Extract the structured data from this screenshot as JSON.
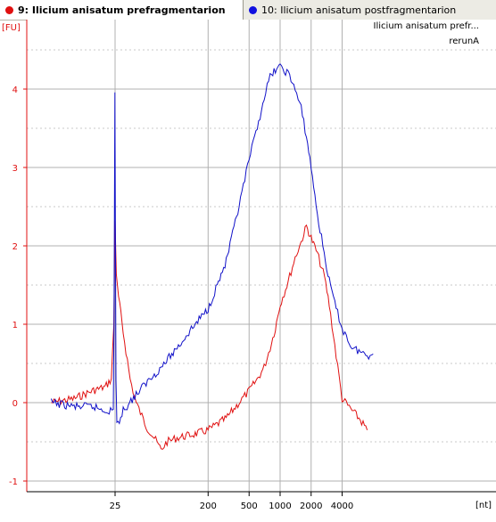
{
  "tabs": [
    {
      "label": "9: Ilicium anisatum prefragmentarion",
      "color": "#e01010",
      "active": true
    },
    {
      "label": "10: Ilicium anisatum postfragmentarion",
      "color": "#1010e0",
      "active": false
    }
  ],
  "chart_data": {
    "type": "line",
    "x_scale": "log",
    "xlabel": "[nt]",
    "ylabel": "[FU]",
    "x_ticks": [
      25,
      200,
      500,
      1000,
      2000,
      4000
    ],
    "y_ticks": [
      -1,
      0,
      1,
      2,
      3,
      4
    ],
    "ylim": [
      -1.1,
      4.75
    ],
    "legend": {
      "position": "top-right",
      "entries": [
        "Ilicium anisatum prefr...",
        "rerunA"
      ]
    },
    "series": [
      {
        "name": "Ilicium anisatum prefragmentarion",
        "color": "#e01010",
        "points": [
          [
            6,
            0.0
          ],
          [
            10,
            0.05
          ],
          [
            15,
            0.15
          ],
          [
            20,
            0.2
          ],
          [
            23,
            0.3
          ],
          [
            24.3,
            1.0
          ],
          [
            25,
            2.35
          ],
          [
            25.7,
            1.6
          ],
          [
            27,
            1.35
          ],
          [
            30,
            0.9
          ],
          [
            35,
            0.3
          ],
          [
            40,
            0.0
          ],
          [
            50,
            -0.3
          ],
          [
            60,
            -0.45
          ],
          [
            70,
            -0.6
          ],
          [
            80,
            -0.5
          ],
          [
            100,
            -0.45
          ],
          [
            150,
            -0.4
          ],
          [
            200,
            -0.35
          ],
          [
            300,
            -0.2
          ],
          [
            400,
            0.0
          ],
          [
            500,
            0.15
          ],
          [
            600,
            0.3
          ],
          [
            700,
            0.45
          ],
          [
            800,
            0.7
          ],
          [
            900,
            0.95
          ],
          [
            1000,
            1.25
          ],
          [
            1200,
            1.55
          ],
          [
            1400,
            1.85
          ],
          [
            1600,
            2.05
          ],
          [
            1800,
            2.25
          ],
          [
            2000,
            2.1
          ],
          [
            2300,
            1.9
          ],
          [
            2700,
            1.6
          ],
          [
            3000,
            1.25
          ],
          [
            3500,
            0.6
          ],
          [
            4000,
            0.05
          ],
          [
            5000,
            -0.1
          ],
          [
            6000,
            -0.22
          ],
          [
            7000,
            -0.35
          ]
        ]
      },
      {
        "name": "Ilicium anisatum postfragmentarion",
        "color": "#1010c8",
        "points": [
          [
            6,
            0.0
          ],
          [
            10,
            -0.05
          ],
          [
            15,
            -0.05
          ],
          [
            20,
            -0.1
          ],
          [
            24,
            -0.1
          ],
          [
            24.4,
            1.0
          ],
          [
            24.9,
            3.95
          ],
          [
            25.5,
            0.3
          ],
          [
            26,
            -0.3
          ],
          [
            30,
            -0.1
          ],
          [
            40,
            0.1
          ],
          [
            50,
            0.25
          ],
          [
            70,
            0.45
          ],
          [
            100,
            0.7
          ],
          [
            150,
            1.0
          ],
          [
            200,
            1.2
          ],
          [
            300,
            1.8
          ],
          [
            400,
            2.5
          ],
          [
            500,
            3.1
          ],
          [
            600,
            3.5
          ],
          [
            700,
            3.9
          ],
          [
            800,
            4.15
          ],
          [
            900,
            4.25
          ],
          [
            1000,
            4.28
          ],
          [
            1200,
            4.2
          ],
          [
            1400,
            4.0
          ],
          [
            1600,
            3.75
          ],
          [
            1800,
            3.4
          ],
          [
            2000,
            3.0
          ],
          [
            2300,
            2.4
          ],
          [
            2600,
            2.0
          ],
          [
            3000,
            1.55
          ],
          [
            3500,
            1.2
          ],
          [
            4000,
            0.95
          ],
          [
            5000,
            0.7
          ],
          [
            6000,
            0.65
          ],
          [
            7000,
            0.6
          ],
          [
            8000,
            0.62
          ]
        ]
      }
    ]
  }
}
